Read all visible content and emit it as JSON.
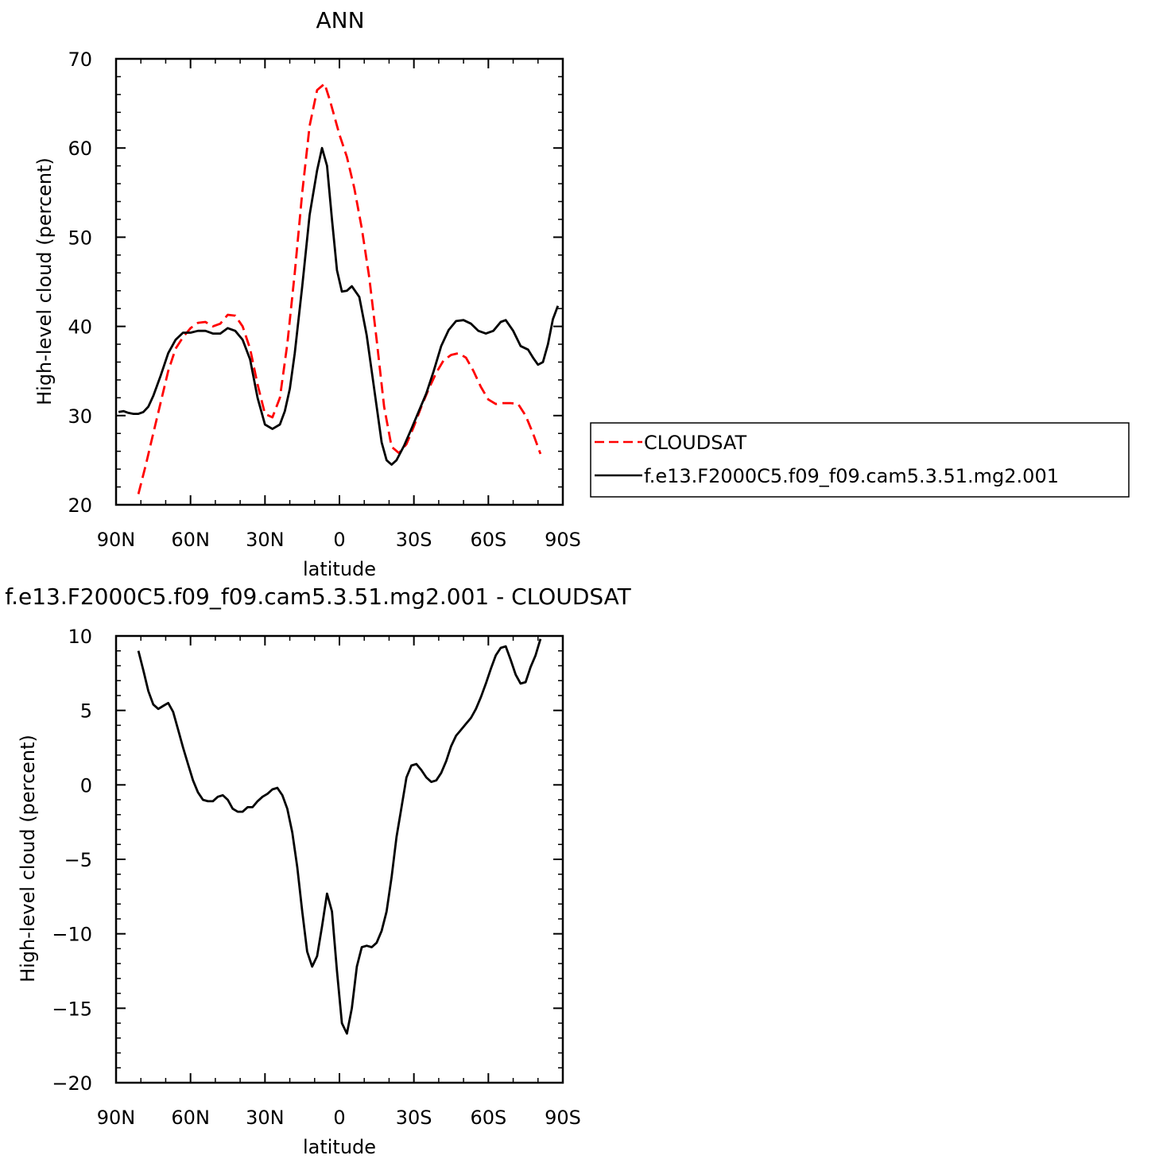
{
  "chart_data": [
    {
      "type": "line",
      "title": "ANN",
      "xlabel": "latitude",
      "ylabel": "High-level cloud (percent)",
      "xlim": [
        -90,
        90
      ],
      "ylim": [
        20,
        70
      ],
      "xticks": [
        {
          "value": -90,
          "label": "90N"
        },
        {
          "value": -60,
          "label": "60N"
        },
        {
          "value": -30,
          "label": "30N"
        },
        {
          "value": 0,
          "label": "0"
        },
        {
          "value": 30,
          "label": "30S"
        },
        {
          "value": 60,
          "label": "60S"
        },
        {
          "value": 90,
          "label": "90S"
        }
      ],
      "yticks": [
        20,
        30,
        40,
        50,
        60,
        70
      ],
      "legend_position": "right",
      "series": [
        {
          "name": "CLOUDSAT",
          "color": "#ff0000",
          "dash": "dashed",
          "x": [
            -81,
            -78,
            -75,
            -72,
            -69,
            -66,
            -63,
            -60,
            -57,
            -54,
            -51,
            -48,
            -45,
            -42,
            -39,
            -36,
            -33,
            -30,
            -27,
            -24,
            -21,
            -18,
            -15,
            -12,
            -9,
            -6,
            -4,
            -2,
            0,
            3,
            6,
            9,
            12,
            15,
            18,
            21,
            24,
            27,
            30,
            33,
            36,
            39,
            42,
            45,
            48,
            51,
            54,
            57,
            60,
            63,
            66,
            69,
            72,
            75,
            78,
            81
          ],
          "y": [
            21.2,
            24.5,
            28,
            31.5,
            35,
            37.5,
            38.8,
            39.8,
            40.4,
            40.5,
            40.0,
            40.3,
            41.3,
            41.2,
            40.0,
            37.5,
            33.5,
            30.2,
            29.8,
            32.0,
            38.0,
            46.0,
            55.0,
            62.5,
            66.5,
            67.2,
            65.5,
            63.5,
            61.5,
            59.0,
            55.5,
            51.0,
            45.5,
            38.5,
            31.0,
            26.5,
            25.8,
            26.8,
            28.8,
            31.0,
            33.0,
            34.8,
            36.2,
            36.8,
            37.0,
            36.5,
            35.0,
            33.2,
            31.8,
            31.3,
            31.4,
            31.4,
            31.3,
            30.0,
            28.0,
            25.7
          ]
        },
        {
          "name": "f.e13.F2000C5.f09_f09.cam5.3.51.mg2.001",
          "color": "#000000",
          "dash": "solid",
          "x": [
            -89,
            -87,
            -85,
            -83,
            -81,
            -79,
            -77,
            -75,
            -72,
            -69,
            -66,
            -63,
            -60,
            -57,
            -54,
            -51,
            -48,
            -45,
            -42,
            -39,
            -36,
            -33,
            -30,
            -27,
            -24,
            -22,
            -20,
            -18,
            -15,
            -12,
            -9,
            -7,
            -5,
            -3,
            -1,
            1,
            3,
            5,
            8,
            11,
            14,
            17,
            19,
            21,
            23,
            26,
            29,
            32,
            35,
            38,
            41,
            44,
            47,
            50,
            53,
            56,
            59,
            62,
            65,
            67,
            70,
            73,
            76,
            78,
            80,
            82,
            84,
            86,
            88
          ],
          "y": [
            30.4,
            30.5,
            30.3,
            30.2,
            30.2,
            30.4,
            31.0,
            32.2,
            34.5,
            37.0,
            38.5,
            39.3,
            39.3,
            39.5,
            39.5,
            39.2,
            39.2,
            39.8,
            39.5,
            38.5,
            36.3,
            32.0,
            29.0,
            28.5,
            29.0,
            30.5,
            33.0,
            37.0,
            44.5,
            52.5,
            57.5,
            60.0,
            58.0,
            52.0,
            46.3,
            43.9,
            44.0,
            44.5,
            43.3,
            39.0,
            33.0,
            27.0,
            25.0,
            24.5,
            25.0,
            26.6,
            28.5,
            30.5,
            32.5,
            35.0,
            37.8,
            39.6,
            40.6,
            40.7,
            40.3,
            39.5,
            39.2,
            39.5,
            40.5,
            40.7,
            39.5,
            37.8,
            37.4,
            36.5,
            35.7,
            36.0,
            38.0,
            40.8,
            42.3
          ]
        }
      ]
    },
    {
      "type": "line",
      "title": "f.e13.F2000C5.f09_f09.cam5.3.51.mg2.001  -  CLOUDSAT",
      "xlabel": "latitude",
      "ylabel": "High-level cloud (percent)",
      "xlim": [
        -90,
        90
      ],
      "ylim": [
        -20,
        10
      ],
      "xticks": [
        {
          "value": -90,
          "label": "90N"
        },
        {
          "value": -60,
          "label": "60N"
        },
        {
          "value": -30,
          "label": "30N"
        },
        {
          "value": 0,
          "label": "0"
        },
        {
          "value": 30,
          "label": "30S"
        },
        {
          "value": 60,
          "label": "60S"
        },
        {
          "value": 90,
          "label": "90S"
        }
      ],
      "yticks": [
        -20,
        -15,
        -10,
        -5,
        0,
        5,
        10
      ],
      "series": [
        {
          "color": "#000000",
          "dash": "solid",
          "x": [
            -81,
            -79,
            -77,
            -75,
            -73,
            -71,
            -69,
            -67,
            -65,
            -63,
            -61,
            -59,
            -57,
            -55,
            -53,
            -51,
            -49,
            -47,
            -45,
            -43,
            -41,
            -39,
            -37,
            -35,
            -33,
            -31,
            -29,
            -27,
            -25,
            -23,
            -21,
            -19,
            -17,
            -15,
            -13,
            -11,
            -9,
            -7,
            -5,
            -3,
            -1,
            1,
            3,
            5,
            7,
            9,
            11,
            13,
            15,
            17,
            19,
            21,
            23,
            25,
            27,
            29,
            31,
            33,
            35,
            37,
            39,
            41,
            43,
            45,
            47,
            49,
            51,
            53,
            55,
            57,
            59,
            61,
            63,
            65,
            67,
            69,
            71,
            73,
            75,
            77,
            79,
            81
          ],
          "y": [
            9.0,
            7.7,
            6.3,
            5.4,
            5.1,
            5.3,
            5.5,
            4.9,
            3.7,
            2.5,
            1.4,
            0.3,
            -0.5,
            -1.0,
            -1.1,
            -1.1,
            -0.8,
            -0.7,
            -1.0,
            -1.6,
            -1.8,
            -1.8,
            -1.5,
            -1.5,
            -1.1,
            -0.8,
            -0.6,
            -0.3,
            -0.2,
            -0.7,
            -1.6,
            -3.2,
            -5.5,
            -8.5,
            -11.2,
            -12.2,
            -11.5,
            -9.5,
            -7.3,
            -8.5,
            -12.5,
            -16.0,
            -16.7,
            -15.0,
            -12.2,
            -10.9,
            -10.8,
            -10.9,
            -10.6,
            -9.8,
            -8.5,
            -6.2,
            -3.5,
            -1.5,
            0.5,
            1.3,
            1.4,
            1.0,
            0.5,
            0.2,
            0.3,
            0.8,
            1.6,
            2.6,
            3.3,
            3.7,
            4.1,
            4.5,
            5.1,
            5.9,
            6.8,
            7.8,
            8.7,
            9.2,
            9.3,
            8.4,
            7.4,
            6.8,
            6.9,
            7.9,
            8.7,
            9.8
          ]
        }
      ]
    }
  ]
}
